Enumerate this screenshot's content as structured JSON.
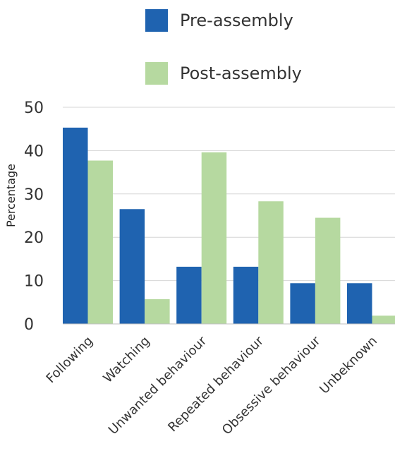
{
  "chart_data": {
    "type": "bar",
    "title": "",
    "xlabel": "",
    "ylabel": "Percentage",
    "ylim": [
      0,
      50
    ],
    "yticks": [
      0,
      10,
      20,
      30,
      40,
      50
    ],
    "grid": true,
    "legend_position": "top",
    "categories": [
      "Following",
      "Watching",
      "Unwanted behaviour",
      "Repeated behaviour",
      "Obsessive behaviour",
      "Unbeknown"
    ],
    "series": [
      {
        "name": "Pre-assembly",
        "color": "#1f63b0",
        "values": [
          45.3,
          26.5,
          13.2,
          13.2,
          9.4,
          9.4
        ]
      },
      {
        "name": "Post-assembly",
        "color": "#b6d9a0",
        "values": [
          37.7,
          5.7,
          39.6,
          28.3,
          24.5,
          1.9
        ]
      }
    ]
  }
}
